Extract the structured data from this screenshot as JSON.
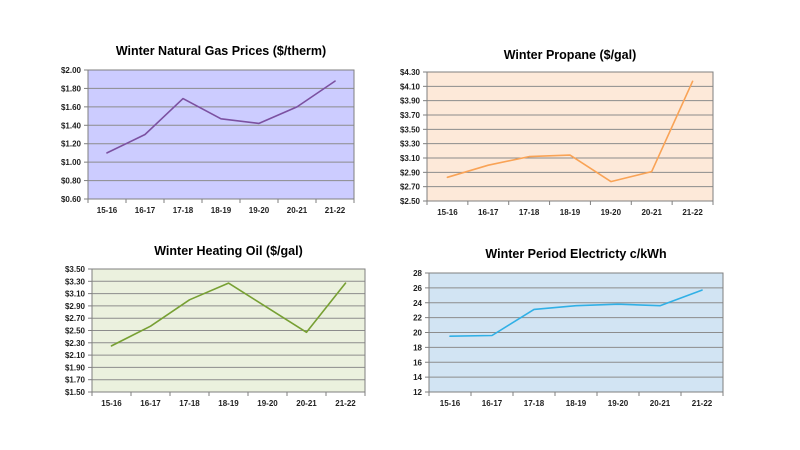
{
  "page": {
    "background": "#FFFFFF",
    "grid_color": "#8C8C8C",
    "axis_color": "#7F7F7F",
    "tick_text_color": "#1F1F1F"
  },
  "chart_data": [
    {
      "type": "line",
      "title": "Winter Natural Gas Prices ($/therm)",
      "categories": [
        "15-16",
        "16-17",
        "17-18",
        "18-19",
        "19-20",
        "20-21",
        "21-22"
      ],
      "values": [
        1.1,
        1.3,
        1.69,
        1.47,
        1.42,
        1.6,
        1.88
      ],
      "ylim": [
        0.6,
        2.0
      ],
      "y_tick_step": 0.2,
      "y_ticks": [
        "$2.00",
        "$1.80",
        "$1.60",
        "$1.40",
        "$1.20",
        "$1.00",
        "$0.80",
        "$0.60"
      ],
      "xlabel": "",
      "ylabel": "",
      "legend": "none",
      "grid": true,
      "plot_bg": "#CCCCFF",
      "line_color": "#7C51A1"
    },
    {
      "type": "line",
      "title": "Winter Propane ($/gal)",
      "categories": [
        "15-16",
        "16-17",
        "17-18",
        "18-19",
        "19-20",
        "20-21",
        "21-22"
      ],
      "values": [
        2.83,
        3.0,
        3.12,
        3.14,
        2.77,
        2.91,
        4.17
      ],
      "ylim": [
        2.5,
        4.3
      ],
      "y_tick_step": 0.2,
      "y_ticks": [
        "$4.30",
        "$4.10",
        "$3.90",
        "$3.70",
        "$3.50",
        "$3.30",
        "$3.10",
        "$2.90",
        "$2.70",
        "$2.50"
      ],
      "xlabel": "",
      "ylabel": "",
      "legend": "none",
      "grid": true,
      "plot_bg": "#FDE9D9",
      "line_color": "#F9A356"
    },
    {
      "type": "line",
      "title": "Winter Heating Oil ($/gal)",
      "categories": [
        "15-16",
        "16-17",
        "17-18",
        "18-19",
        "19-20",
        "20-21",
        "21-22"
      ],
      "values": [
        2.25,
        2.57,
        3.0,
        3.27,
        2.87,
        2.47,
        3.27
      ],
      "ylim": [
        1.5,
        3.5
      ],
      "y_tick_step": 0.2,
      "y_ticks": [
        "$3.50",
        "$3.30",
        "$3.10",
        "$2.90",
        "$2.70",
        "$2.50",
        "$2.30",
        "$2.10",
        "$1.90",
        "$1.70",
        "$1.50"
      ],
      "xlabel": "",
      "ylabel": "",
      "legend": "none",
      "grid": true,
      "plot_bg": "#EBF1DE",
      "line_color": "#77A033"
    },
    {
      "type": "line",
      "title": "Winter Period Electricty c/kWh",
      "categories": [
        "15-16",
        "16-17",
        "17-18",
        "18-19",
        "19-20",
        "20-21",
        "21-22"
      ],
      "values": [
        19.5,
        19.6,
        23.1,
        23.6,
        23.8,
        23.6,
        25.7
      ],
      "ylim": [
        12,
        28
      ],
      "y_tick_step": 2,
      "y_ticks": [
        "28",
        "26",
        "24",
        "22",
        "20",
        "18",
        "16",
        "14",
        "12"
      ],
      "xlabel": "",
      "ylabel": "",
      "legend": "none",
      "grid": true,
      "plot_bg": "#D2E4F3",
      "line_color": "#31B0E6"
    }
  ]
}
